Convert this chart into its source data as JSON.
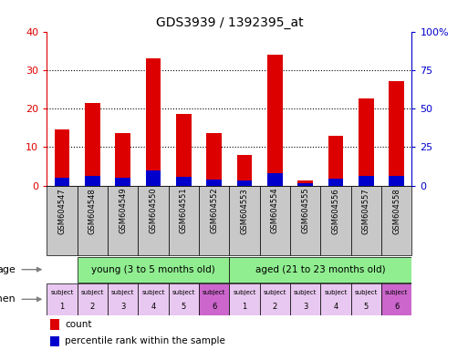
{
  "title": "GDS3939 / 1392395_at",
  "samples": [
    "GSM604547",
    "GSM604548",
    "GSM604549",
    "GSM604550",
    "GSM604551",
    "GSM604552",
    "GSM604553",
    "GSM604554",
    "GSM604555",
    "GSM604556",
    "GSM604557",
    "GSM604558"
  ],
  "count": [
    14.5,
    21.5,
    13.5,
    33.0,
    18.5,
    13.5,
    8.0,
    34.0,
    1.2,
    13.0,
    22.5,
    27.0
  ],
  "percentile": [
    5.0,
    6.5,
    5.2,
    9.8,
    5.5,
    3.8,
    3.2,
    8.0,
    1.2,
    4.2,
    6.0,
    6.0
  ],
  "count_color": "#dd0000",
  "percentile_color": "#0000cc",
  "ylim_left": [
    0,
    40
  ],
  "ylim_right": [
    0,
    100
  ],
  "yticks_left": [
    0,
    10,
    20,
    30,
    40
  ],
  "ytick_labels_left": [
    "0",
    "10",
    "20",
    "30",
    "40"
  ],
  "yticks_right": [
    0,
    25,
    50,
    75,
    100
  ],
  "ytick_labels_right": [
    "0",
    "25",
    "50",
    "75",
    "100%"
  ],
  "bar_width": 0.5,
  "young_label": "young (3 to 5 months old)",
  "aged_label": "aged (21 to 23 months old)",
  "young_color": "#90ee90",
  "aged_color": "#90ee90",
  "specimen_colors_young": [
    "#e8c8f0",
    "#e8c8f0",
    "#e8c8f0",
    "#e8c8f0",
    "#e8c8f0",
    "#cc66cc"
  ],
  "specimen_colors_aged": [
    "#e8c8f0",
    "#e8c8f0",
    "#e8c8f0",
    "#e8c8f0",
    "#e8c8f0",
    "#cc66cc"
  ],
  "specimen_labels_top": [
    "subject",
    "subject",
    "subject",
    "subject",
    "subject",
    "subject",
    "subject",
    "subject",
    "subject",
    "subject",
    "subject",
    "subject"
  ],
  "specimen_numbers": [
    "1",
    "2",
    "3",
    "4",
    "5",
    "6",
    "1",
    "2",
    "3",
    "4",
    "5",
    "6"
  ],
  "tick_label_color_left": "#dd0000",
  "tick_label_color_right": "#0000cc",
  "label_bg_color": "#c8c8c8",
  "legend_count": "count",
  "legend_percentile": "percentile rank within the sample"
}
